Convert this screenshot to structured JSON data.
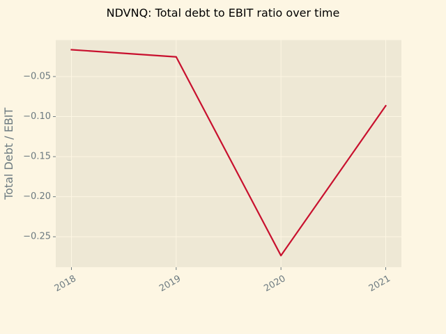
{
  "chart_data": {
    "type": "line",
    "title": "NDVNQ: Total debt to EBIT ratio over time",
    "xlabel": "",
    "ylabel": "Total Debt / EBIT",
    "x": [
      "2018",
      "2019",
      "2020",
      "2021"
    ],
    "series": [
      {
        "name": "",
        "values": [
          -0.0165,
          -0.0255,
          -0.2735,
          -0.0865
        ]
      }
    ],
    "y_ticks": [
      -0.05,
      -0.1,
      -0.15,
      -0.2,
      -0.25
    ],
    "y_tick_labels": [
      "−0.05",
      "−0.10",
      "−0.15",
      "−0.20",
      "−0.25"
    ],
    "ylim": [
      -0.288,
      -0.0045
    ],
    "grid": true,
    "colors": {
      "background": "#fdf6e3",
      "plot_area": "#eee8d5",
      "line": "#c8102e",
      "grid": "#fdf6e3",
      "text": "#6c7a80"
    }
  }
}
